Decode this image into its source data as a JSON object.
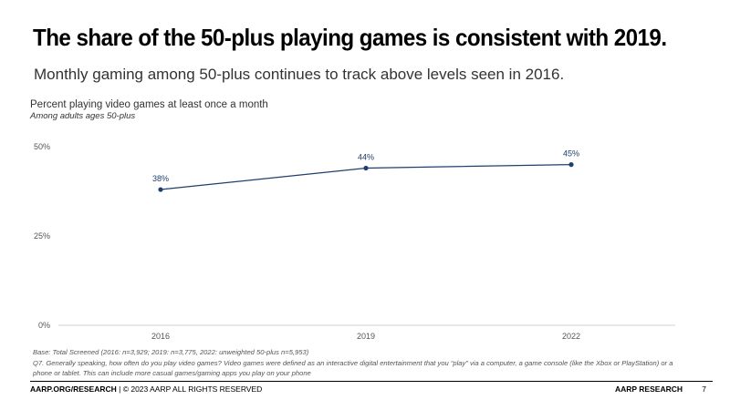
{
  "slide": {
    "title": "The share of the 50-plus playing games is consistent with 2019.",
    "subtitle": "Monthly gaming among 50-plus continues to track above levels seen in 2016."
  },
  "chart_data": {
    "type": "line",
    "title": "Percent playing video games at least once a month",
    "subtitle": "Among adults ages 50-plus",
    "categories": [
      "2016",
      "2019",
      "2022"
    ],
    "series": [
      {
        "name": "Percent playing video games at least once a month",
        "values": [
          38,
          44,
          45
        ],
        "labels": [
          "38%",
          "44%",
          "45%"
        ]
      }
    ],
    "yticks": [
      0,
      25,
      50
    ],
    "ytick_labels": [
      "0%",
      "25%",
      "50%"
    ],
    "ylim": [
      0,
      50
    ],
    "xlabel": "",
    "ylabel": "",
    "grid": false,
    "colors": {
      "line": "#1f3f6e",
      "label": "#1f3f6e",
      "axis": "#d0d0d0",
      "tick_text": "#555555"
    }
  },
  "notes": {
    "base": "Base: Total Screened (2016: n=3,929; 2019: n=3,775, 2022: unweighted 50-plus n=5,953)",
    "question": "Q7. Generally speaking, how often do you play video games? Video games were defined as an interactive digital entertainment that you “play” via a computer, a game console (like the Xbox or PlayStation) or a phone or tablet. This can include more casual games/gaming apps you play on your phone"
  },
  "footer": {
    "site": "AARP.ORG/RESEARCH",
    "copyright": " | © 2023 AARP ALL RIGHTS RESERVED",
    "brand": "AARP RESEARCH",
    "page_number": "7"
  }
}
